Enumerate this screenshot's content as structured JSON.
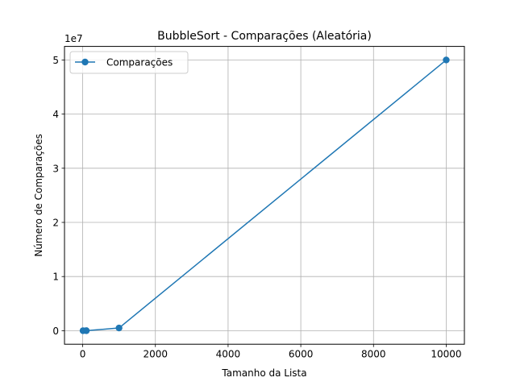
{
  "chart_data": {
    "type": "line",
    "title": "BubbleSort - Comparações (Aleatória)",
    "xlabel": "Tamanho da Lista",
    "ylabel": "Número de Comparações",
    "y_offset_label": "1e7",
    "y_scale": 10000000,
    "xlim": [
      -500,
      10500
    ],
    "ylim": [
      -2500000,
      52500000
    ],
    "x_ticks": [
      0,
      2000,
      4000,
      6000,
      8000,
      10000
    ],
    "x_tick_labels": [
      "0",
      "2000",
      "4000",
      "6000",
      "8000",
      "10000"
    ],
    "y_ticks": [
      0,
      10000000,
      20000000,
      30000000,
      40000000,
      50000000
    ],
    "y_tick_labels": [
      "0",
      "1",
      "2",
      "3",
      "4",
      "5"
    ],
    "grid": true,
    "legend_position": "upper-left",
    "series": [
      {
        "name": "Comparações",
        "color": "#1f77b4",
        "marker": "circle",
        "x": [
          10,
          100,
          1000,
          10000
        ],
        "y": [
          45,
          4950,
          499500,
          49995000
        ]
      }
    ]
  }
}
